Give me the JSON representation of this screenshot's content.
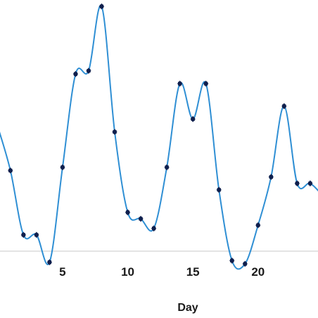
{
  "chart_data": {
    "type": "line",
    "title": "",
    "xlabel": "Day",
    "ylabel": "",
    "xlim": [
      0.2,
      24.6
    ],
    "ylim": [
      -0.5,
      7.7
    ],
    "x_ticks": [
      "5",
      "10",
      "15",
      "20"
    ],
    "x_tick_values": [
      5,
      10,
      15,
      20
    ],
    "grid": false,
    "line_color": "#2f8fd4",
    "marker_color": "#0f1f4d",
    "series": [
      {
        "x": [
          0,
          1,
          2,
          3,
          4,
          5,
          6,
          7,
          8,
          9,
          10,
          11,
          12,
          13,
          14,
          15,
          16,
          17,
          18,
          19,
          20,
          21,
          22,
          23,
          24,
          25
        ],
        "y": [
          3.8,
          2.4,
          0.4,
          0.4,
          -0.45,
          2.5,
          5.4,
          5.5,
          7.5,
          3.6,
          1.1,
          0.9,
          0.6,
          2.5,
          5.1,
          4.0,
          5.1,
          1.8,
          -0.4,
          -0.5,
          0.7,
          2.2,
          4.4,
          2.0,
          2.0,
          1.6
        ]
      }
    ]
  }
}
